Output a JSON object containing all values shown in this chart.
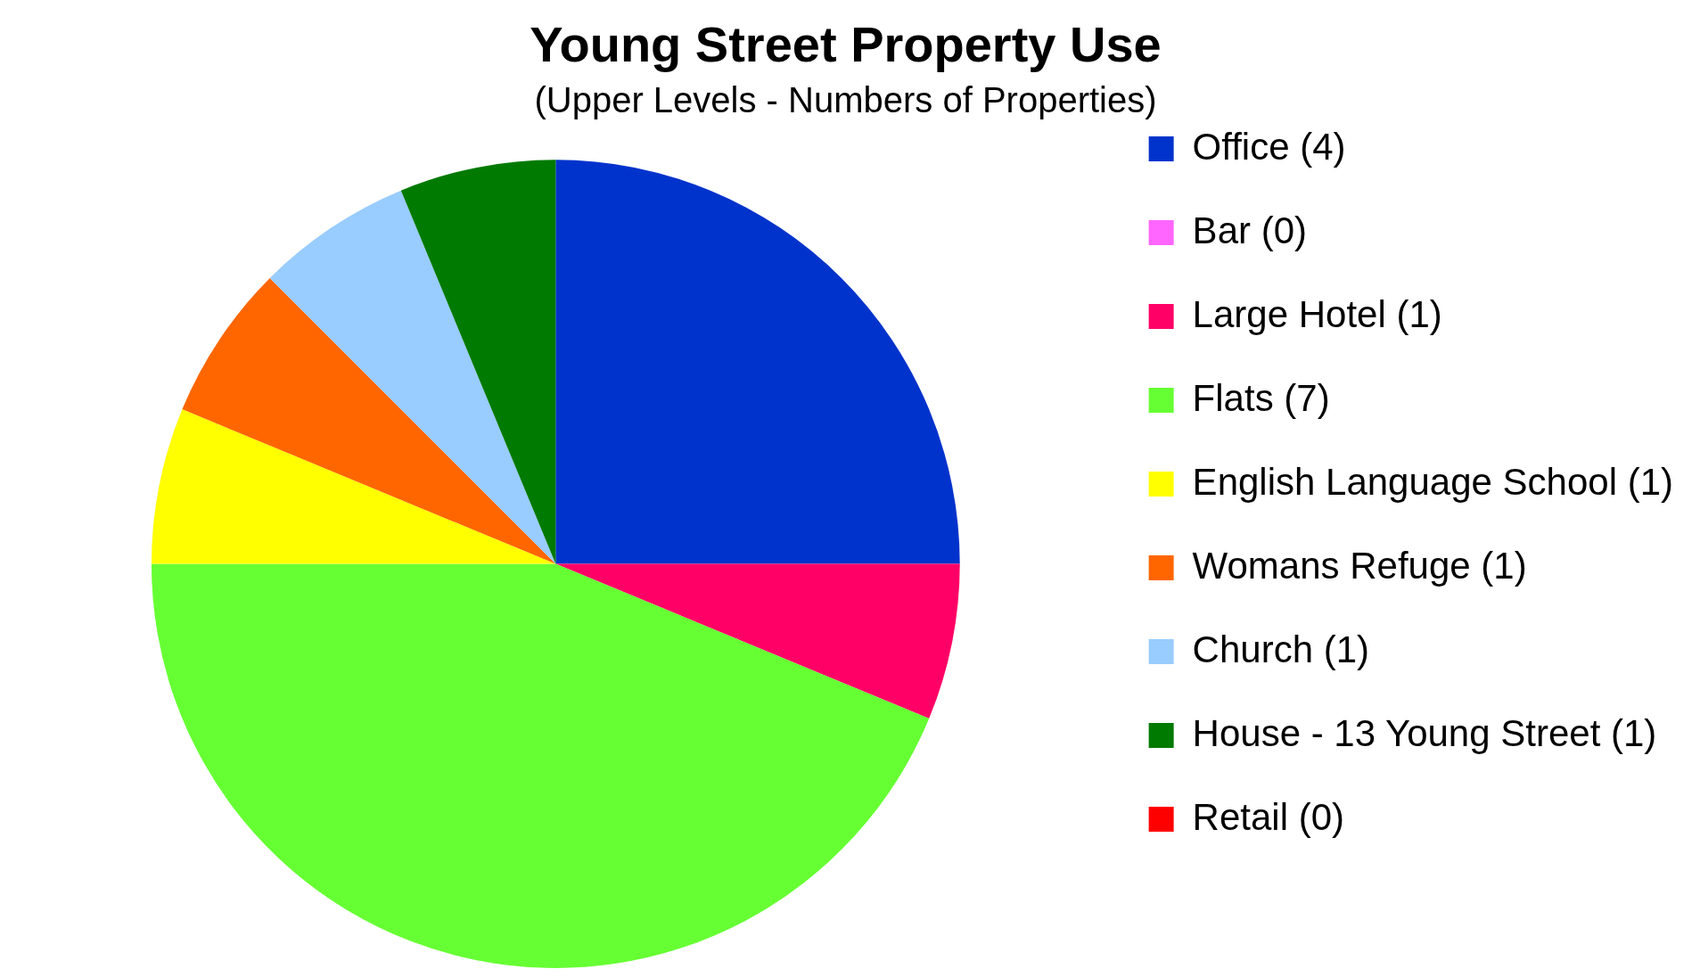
{
  "chart_data": {
    "type": "pie",
    "title": "Young Street Property Use",
    "subtitle": "(Upper Levels - Numbers of Properties)",
    "categories": [
      "Office (4)",
      "Bar (0)",
      "Large Hotel (1)",
      "Flats (7)",
      "English Language School (1)",
      "Womans Refuge (1)",
      "Church (1)",
      "House - 13 Young Street (1)",
      "Retail (0)"
    ],
    "values": [
      4,
      0,
      1,
      7,
      1,
      1,
      1,
      1,
      0
    ],
    "colors": [
      "#0033cc",
      "#ff66ff",
      "#ff0066",
      "#66ff33",
      "#ffff00",
      "#ff6600",
      "#99ccff",
      "#007a00",
      "#ff0000"
    ],
    "legend": "right"
  }
}
